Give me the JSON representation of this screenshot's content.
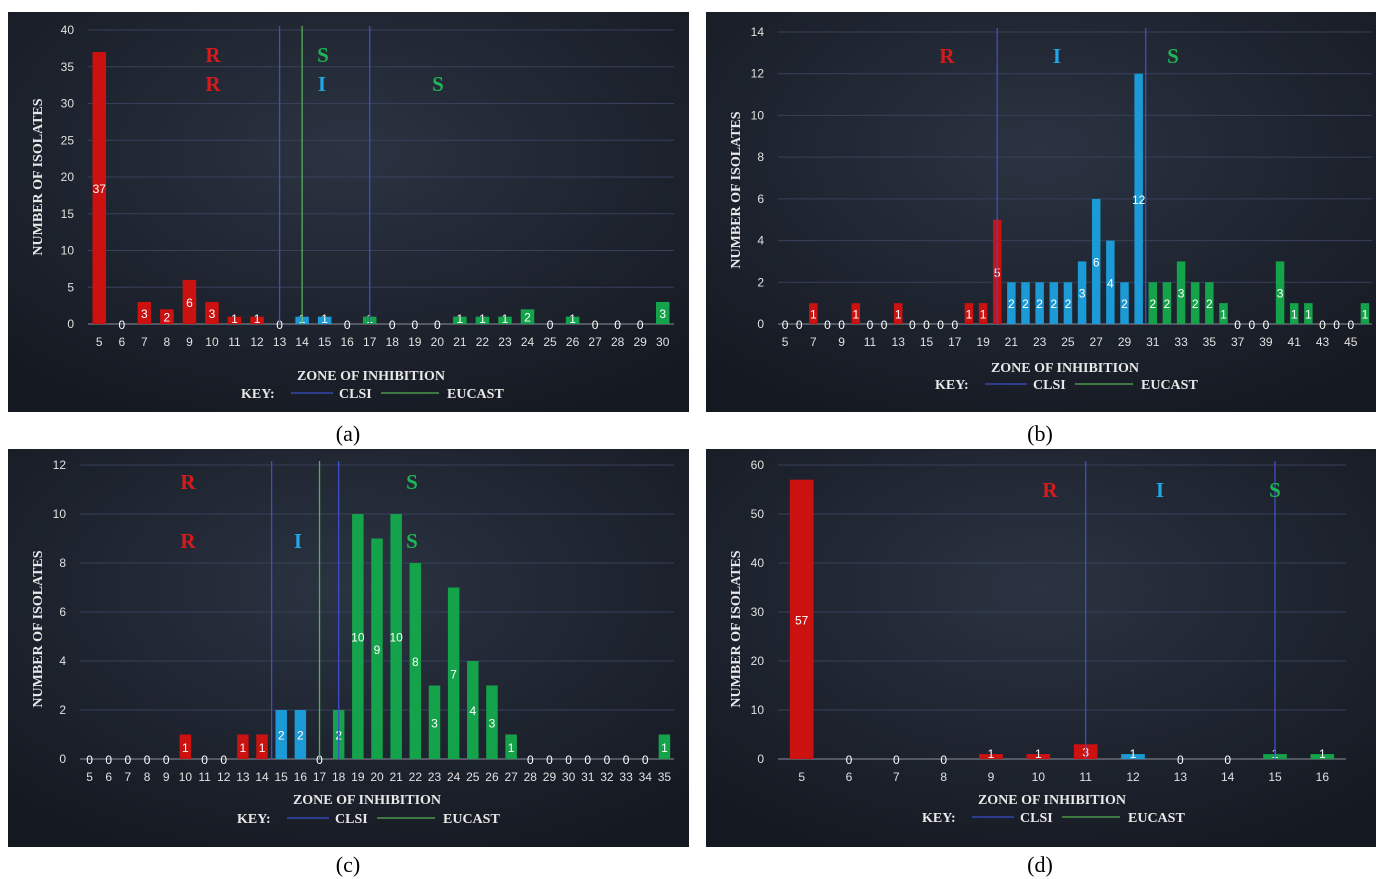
{
  "captions": [
    "(a)",
    "(b)",
    "(c)",
    "(d)"
  ],
  "colors": {
    "R": "#cc1111",
    "I": "#1b9ad6",
    "S": "#14a34a",
    "clsi": "#3a4fc9",
    "eucast": "#55b055",
    "zoneR": "#d41c1c",
    "zoneI": "#23a6e6",
    "zoneS": "#1fb455"
  },
  "chart_data": [
    {
      "type": "bar",
      "xlabel": "ZONE OF INHIBITION",
      "ylabel": "NUMBER OF ISOLATES",
      "key_label": "KEY:",
      "legend": [
        "CLSI",
        "EUCAST"
      ],
      "ylim": [
        0,
        40
      ],
      "yticks": [
        0,
        5,
        10,
        15,
        20,
        25,
        30,
        35,
        40
      ],
      "categories": [
        "5",
        "6",
        "7",
        "8",
        "9",
        "10",
        "11",
        "12",
        "13",
        "14",
        "15",
        "16",
        "17",
        "18",
        "19",
        "20",
        "21",
        "22",
        "23",
        "24",
        "25",
        "26",
        "27",
        "28",
        "29",
        "30"
      ],
      "values": [
        37,
        0,
        3,
        2,
        6,
        3,
        1,
        1,
        0,
        1,
        1,
        0,
        1,
        0,
        0,
        0,
        1,
        1,
        1,
        2,
        0,
        1,
        0,
        0,
        0,
        3
      ],
      "classes": [
        "R",
        "R",
        "R",
        "R",
        "R",
        "R",
        "R",
        "R",
        "I",
        "I",
        "I",
        "I",
        "S",
        "S",
        "S",
        "S",
        "S",
        "S",
        "S",
        "S",
        "S",
        "S",
        "S",
        "S",
        "S",
        "S"
      ],
      "zone_labels": [
        "R",
        "S",
        "R",
        "I",
        "S"
      ],
      "lines": [
        {
          "type": "clsi",
          "pos": 13
        },
        {
          "type": "eucast",
          "pos": 14
        },
        {
          "type": "clsi",
          "pos": 17
        }
      ]
    },
    {
      "type": "bar",
      "xlabel": "ZONE OF INHIBITION",
      "ylabel": "NUMBER OF ISOLATES",
      "key_label": "KEY:",
      "legend": [
        "CLSI",
        "EUCAST"
      ],
      "ylim": [
        0,
        14
      ],
      "yticks": [
        0,
        2,
        4,
        6,
        8,
        10,
        12,
        14
      ],
      "categories": [
        "5",
        "6",
        "7",
        "8",
        "9",
        "10",
        "11",
        "12",
        "13",
        "14",
        "15",
        "16",
        "17",
        "18",
        "19",
        "20",
        "21",
        "22",
        "23",
        "24",
        "25",
        "26",
        "27",
        "28",
        "29",
        "30",
        "31",
        "32",
        "33",
        "34",
        "35",
        "36",
        "37",
        "38",
        "39",
        "40",
        "41",
        "42",
        "43",
        "44",
        "45",
        "46"
      ],
      "tick_labels": [
        "5",
        "",
        "7",
        "",
        "9",
        "",
        "11",
        "",
        "13",
        "",
        "15",
        "",
        "17",
        "",
        "19",
        "",
        "21",
        "",
        "23",
        "",
        "25",
        "",
        "27",
        "",
        "29",
        "",
        "31",
        "",
        "33",
        "",
        "35",
        "",
        "37",
        "",
        "39",
        "",
        "41",
        "",
        "43",
        "",
        "45",
        ""
      ],
      "values": [
        0,
        0,
        1,
        0,
        0,
        1,
        0,
        0,
        1,
        0,
        0,
        0,
        0,
        1,
        1,
        5,
        2,
        2,
        2,
        2,
        2,
        3,
        6,
        4,
        2,
        12,
        2,
        2,
        3,
        2,
        2,
        1,
        0,
        0,
        0,
        3,
        1,
        1,
        0,
        0,
        0,
        1
      ],
      "classes": [
        "R",
        "R",
        "R",
        "R",
        "R",
        "R",
        "R",
        "R",
        "R",
        "R",
        "R",
        "R",
        "R",
        "R",
        "R",
        "R",
        "I",
        "I",
        "I",
        "I",
        "I",
        "I",
        "I",
        "I",
        "I",
        "I",
        "S",
        "S",
        "S",
        "S",
        "S",
        "S",
        "S",
        "S",
        "S",
        "S",
        "S",
        "S",
        "S",
        "S",
        "S",
        "S"
      ],
      "zone_labels": [
        "R",
        "I",
        "S"
      ],
      "lines": [
        {
          "type": "clsi",
          "pos": 20
        },
        {
          "type": "clsi",
          "pos": 30.5
        }
      ]
    },
    {
      "type": "bar",
      "xlabel": "ZONE OF INHIBITION",
      "ylabel": "NUMBER OF ISOLATES",
      "key_label": "KEY:",
      "legend": [
        "CLSI",
        "EUCAST"
      ],
      "ylim": [
        0,
        12
      ],
      "yticks": [
        0,
        2,
        4,
        6,
        8,
        10,
        12
      ],
      "categories": [
        "5",
        "6",
        "7",
        "8",
        "9",
        "10",
        "11",
        "12",
        "13",
        "14",
        "15",
        "16",
        "17",
        "18",
        "19",
        "20",
        "21",
        "22",
        "23",
        "24",
        "25",
        "26",
        "27",
        "28",
        "29",
        "30",
        "31",
        "32",
        "33",
        "34",
        "35"
      ],
      "values": [
        0,
        0,
        0,
        0,
        0,
        1,
        0,
        0,
        1,
        1,
        2,
        2,
        0,
        2,
        10,
        9,
        10,
        8,
        3,
        7,
        4,
        3,
        1,
        0,
        0,
        0,
        0,
        0,
        0,
        0,
        1
      ],
      "classes": [
        "R",
        "R",
        "R",
        "R",
        "R",
        "R",
        "R",
        "R",
        "R",
        "R",
        "I",
        "I",
        "S",
        "S",
        "S",
        "S",
        "S",
        "S",
        "S",
        "S",
        "S",
        "S",
        "S",
        "S",
        "S",
        "S",
        "S",
        "S",
        "S",
        "S",
        "S"
      ],
      "zone_labels": [
        "R",
        "S",
        "R",
        "I",
        "S"
      ],
      "lines": [
        {
          "type": "clsi",
          "pos": 14.5
        },
        {
          "type": "eucast",
          "pos": 17
        },
        {
          "type": "clsi",
          "pos": 18
        }
      ]
    },
    {
      "type": "bar",
      "xlabel": "ZONE OF INHIBITION",
      "ylabel": "NUMBER OF ISOLATES",
      "key_label": "KEY:",
      "legend": [
        "CLSI",
        "EUCAST"
      ],
      "ylim": [
        0,
        60
      ],
      "yticks": [
        0,
        10,
        20,
        30,
        40,
        50,
        60
      ],
      "categories": [
        "5",
        "6",
        "7",
        "8",
        "9",
        "10",
        "11",
        "12",
        "13",
        "14",
        "15",
        "16"
      ],
      "values": [
        57,
        0,
        0,
        0,
        1,
        1,
        3,
        1,
        0,
        0,
        1,
        1
      ],
      "classes": [
        "R",
        "R",
        "R",
        "R",
        "R",
        "R",
        "R",
        "I",
        "I",
        "I",
        "S",
        "S"
      ],
      "zone_labels": [
        "R",
        "I",
        "S"
      ],
      "lines": [
        {
          "type": "clsi",
          "pos": 11
        },
        {
          "type": "clsi",
          "pos": 15
        }
      ]
    }
  ]
}
